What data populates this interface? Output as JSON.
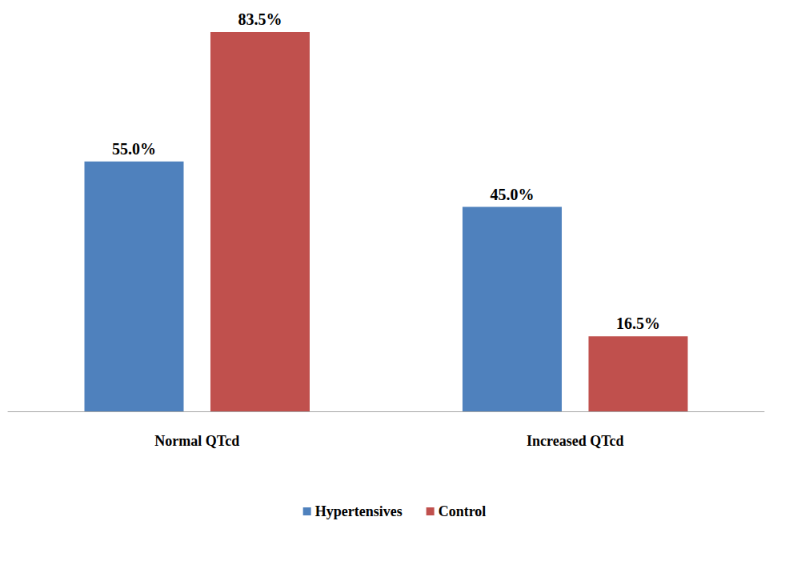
{
  "chart_data": {
    "type": "bar",
    "categories": [
      "Normal QTcd",
      "Increased QTcd"
    ],
    "series": [
      {
        "name": "Hypertensives",
        "color": "#4f81bd",
        "values": [
          55.0,
          45.0
        ],
        "value_labels": [
          "55.0%",
          "45.0%"
        ]
      },
      {
        "name": "Control",
        "color": "#c0504d",
        "values": [
          83.5,
          16.5
        ],
        "value_labels": [
          "83.5%",
          "16.5%"
        ]
      }
    ],
    "ylim": [
      0,
      90
    ],
    "grid": false,
    "legend": "bottom",
    "data_labels": true,
    "tick_labels": "x"
  }
}
